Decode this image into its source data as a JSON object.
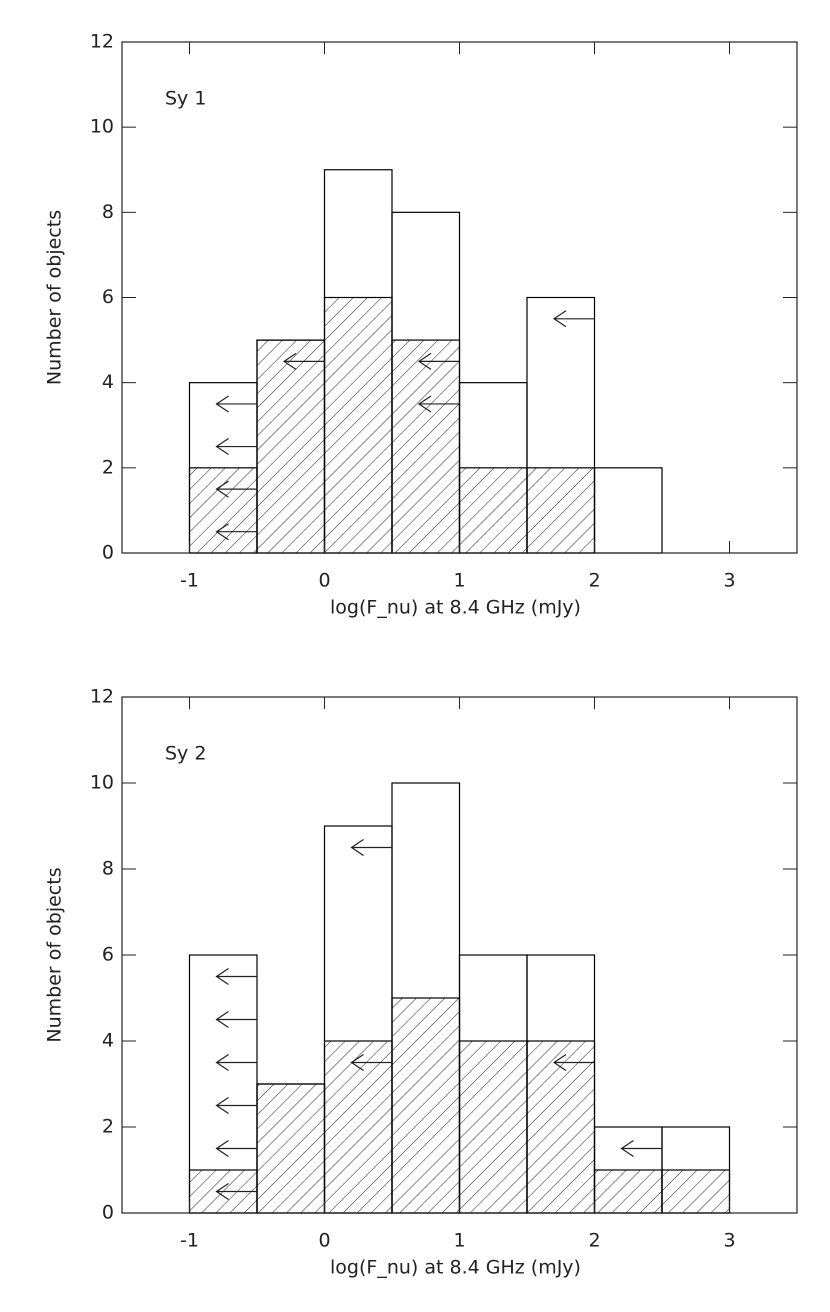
{
  "chart_data": [
    {
      "type": "histogram",
      "annotation": "Sy 1",
      "xlabel": "log(F_nu) at 8.4 GHz (mJy)",
      "ylabel": "Number of objects",
      "bins": [
        -1.5,
        -1,
        -0.5,
        0,
        0.5,
        1,
        1.5,
        2,
        2.5,
        3,
        3.5
      ],
      "series": [
        {
          "color": "#000000",
          "hatch": false,
          "values": [
            0,
            4,
            5,
            9,
            8,
            4,
            6,
            2,
            0,
            0
          ]
        },
        {
          "color": "#000000",
          "hatch": true,
          "values": [
            0,
            2,
            5,
            6,
            5,
            2,
            2,
            0,
            0,
            0
          ]
        }
      ],
      "upper_limits": {
        "x": [
          -0.5,
          -0.5,
          -0.5,
          -0.5,
          0,
          1,
          1,
          2
        ],
        "y": [
          3.5,
          2.5,
          1.5,
          0.5,
          4.5,
          4.5,
          3.5,
          5.5
        ]
      },
      "xlim": [
        -1.5,
        3.5
      ],
      "xticks": [
        -1,
        0,
        1,
        2,
        3
      ],
      "ylim": [
        0,
        12
      ],
      "yticks": [
        0,
        2,
        4,
        6,
        8,
        10,
        12
      ]
    },
    {
      "type": "histogram",
      "annotation": "Sy 2",
      "xlabel": "log(F_nu) at 8.4 GHz (mJy)",
      "ylabel": "Number of objects",
      "bins": [
        -1.5,
        -1,
        -0.5,
        0,
        0.5,
        1,
        1.5,
        2,
        2.5,
        3,
        3.5
      ],
      "series": [
        {
          "color": "#000000",
          "hatch": false,
          "values": [
            0,
            6,
            3,
            9,
            10,
            6,
            6,
            2,
            2,
            0
          ]
        },
        {
          "color": "#000000",
          "hatch": true,
          "values": [
            0,
            1,
            3,
            4,
            5,
            4,
            4,
            1,
            1,
            0
          ]
        }
      ],
      "upper_limits": {
        "x": [
          -0.5,
          -0.5,
          -0.5,
          -0.5,
          -0.5,
          -0.5,
          0.5,
          0.5,
          2,
          2.5
        ],
        "y": [
          5.5,
          4.5,
          3.5,
          2.5,
          1.5,
          0.5,
          8.5,
          3.5,
          3.5,
          1.5
        ]
      },
      "xlim": [
        -1.5,
        3.5
      ],
      "xticks": [
        -1,
        0,
        1,
        2,
        3
      ],
      "ylim": [
        0,
        12
      ],
      "yticks": [
        0,
        2,
        4,
        6,
        8,
        10,
        12
      ]
    }
  ]
}
